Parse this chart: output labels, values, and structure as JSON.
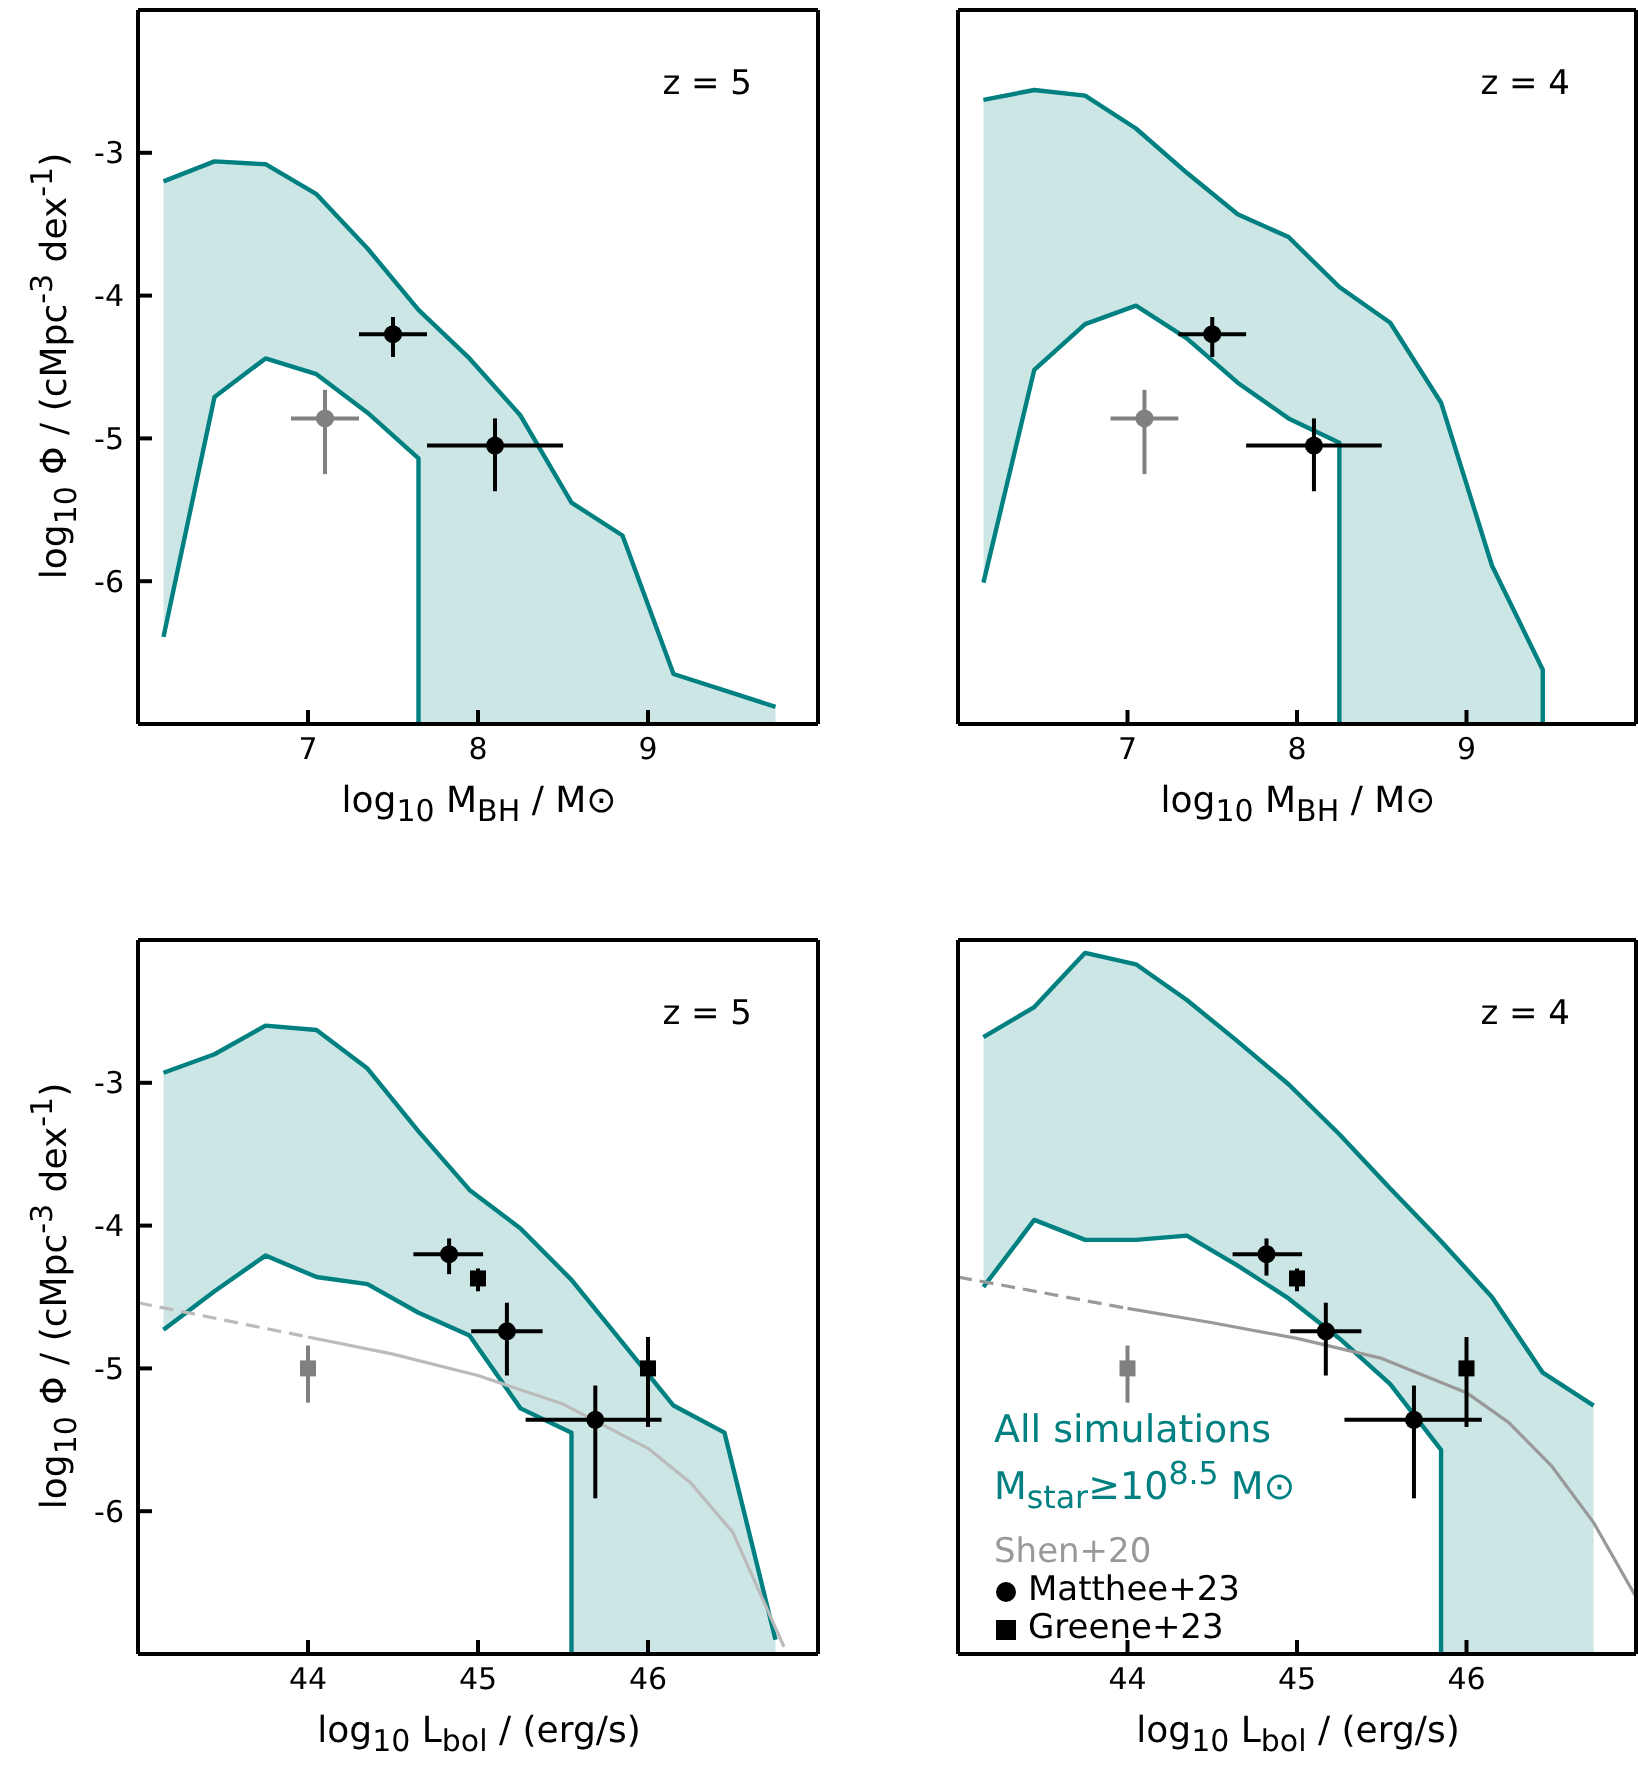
{
  "chart_data": [
    {
      "type": "line",
      "annotations": [
        "z = 5"
      ],
      "xlabel": "log$_{10}$ M$_{BH}$ / M⊙",
      "ylabel": "log$_{10}$ Φ / (cMpc$^{-3}$ dex$^{-1}$)",
      "xlim": [
        6,
        10
      ],
      "xticks": [
        7,
        8,
        9
      ],
      "ylim": [
        -7,
        -2
      ],
      "yticks": [
        -3,
        -4,
        -5,
        -6
      ],
      "series": [
        {
          "color": "#008080",
          "x": [
            6.15,
            6.45,
            6.75,
            7.05,
            7.35,
            7.65,
            7.65,
            7.95,
            8.25,
            8.55,
            8.85,
            9.15,
            9.75
          ],
          "values": [
            -3.2,
            -3.06,
            -3.08,
            -3.29,
            -3.67,
            -4.1,
            -4.1,
            -4.44,
            -4.84,
            -5.45,
            -5.68,
            -6.65,
            -6.88
          ],
          "upper": [
            -3.2,
            -3.06,
            -3.08,
            -3.29,
            -3.67,
            -4.1,
            -4.1,
            -4.44,
            -4.84,
            -5.45,
            -5.68,
            -6.65,
            -6.88
          ],
          "lower": [
            -6.39,
            -4.71,
            -4.44,
            -4.55,
            -4.82,
            -5.14,
            -7,
            -7,
            -7,
            -7,
            -7,
            -7,
            -7
          ]
        },
        {
          "color": "#008080",
          "x": [
            6.15,
            6.45,
            6.75,
            7.05,
            7.35,
            7.65,
            7.65
          ],
          "values": [
            -6.39,
            -4.71,
            -4.44,
            -4.55,
            -4.82,
            -5.14,
            -7
          ]
        },
        {
          "type": "scatter",
          "marker": "circle",
          "color": "#808080",
          "x": [
            7.1
          ],
          "values": [
            -4.86
          ],
          "errors": [
            [
              -5.25,
              -4.66
            ]
          ],
          "xerrors": [
            [
              6.9,
              7.3
            ]
          ]
        },
        {
          "type": "scatter",
          "marker": "circle",
          "color": "#000000",
          "x": [
            7.5,
            8.1
          ],
          "values": [
            -4.27,
            -5.05
          ],
          "errors": [
            [
              -4.43,
              -4.15
            ],
            [
              -5.37,
              -4.86
            ]
          ],
          "xerrors": [
            [
              7.3,
              7.7
            ],
            [
              7.7,
              8.5
            ]
          ]
        }
      ]
    },
    {
      "type": "line",
      "annotations": [
        "z = 4"
      ],
      "xlabel": "log$_{10}$ M$_{BH}$ / M⊙",
      "tick_labels": "x",
      "xlim": [
        6,
        10
      ],
      "xticks": [
        7,
        8,
        9
      ],
      "ylim": [
        -7,
        -2
      ],
      "yticks": [
        -3,
        -4,
        -5,
        -6
      ],
      "series": [
        {
          "color": "#008080",
          "x": [
            6.15,
            6.45,
            6.75,
            7.05,
            7.35,
            7.65,
            7.95,
            8.25,
            8.25,
            8.55,
            8.85,
            9.15,
            9.45,
            9.45
          ],
          "values": [
            -2.63,
            -2.56,
            -2.6,
            -2.83,
            -3.14,
            -3.43,
            -3.59,
            -3.94,
            -3.94,
            -4.19,
            -4.75,
            -5.89,
            -6.62,
            -7
          ],
          "upper": [
            -2.63,
            -2.56,
            -2.6,
            -2.83,
            -3.14,
            -3.43,
            -3.59,
            -3.94,
            -3.94,
            -4.19,
            -4.75,
            -5.89,
            -6.62,
            -7
          ],
          "lower": [
            -6.01,
            -4.52,
            -4.2,
            -4.07,
            -4.3,
            -4.61,
            -4.86,
            -5.03,
            -7,
            -7,
            -7,
            -7,
            -7,
            -7
          ]
        },
        {
          "color": "#008080",
          "x": [
            6.15,
            6.45,
            6.75,
            7.05,
            7.35,
            7.65,
            7.95,
            8.25,
            8.25
          ],
          "values": [
            -6.01,
            -4.52,
            -4.2,
            -4.07,
            -4.3,
            -4.61,
            -4.86,
            -5.03,
            -7
          ]
        },
        {
          "type": "scatter",
          "marker": "circle",
          "color": "#808080",
          "x": [
            7.1
          ],
          "values": [
            -4.86
          ],
          "errors": [
            [
              -5.25,
              -4.66
            ]
          ],
          "xerrors": [
            [
              6.9,
              7.3
            ]
          ]
        },
        {
          "type": "scatter",
          "marker": "circle",
          "color": "#000000",
          "x": [
            7.5,
            8.1
          ],
          "values": [
            -4.27,
            -5.05
          ],
          "errors": [
            [
              -4.43,
              -4.15
            ],
            [
              -5.37,
              -4.86
            ]
          ],
          "xerrors": [
            [
              7.3,
              7.7
            ],
            [
              7.7,
              8.5
            ]
          ]
        }
      ]
    },
    {
      "type": "line",
      "annotations": [
        "z = 5"
      ],
      "xlabel": "log$_{10}$ L$_{bol}$ / (erg/s)",
      "ylabel": "log$_{10}$ Φ / (cMpc$^{-3}$ dex$^{-1}$)",
      "xlim": [
        43,
        47
      ],
      "xticks": [
        44,
        45,
        46
      ],
      "ylim": [
        -7,
        -2
      ],
      "yticks": [
        -3,
        -4,
        -5,
        -6
      ],
      "series": [
        {
          "color": "#008080",
          "x": [
            43.15,
            43.45,
            43.75,
            44.05,
            44.35,
            44.65,
            44.95,
            45.25,
            45.55,
            45.55,
            45.85,
            46.15,
            46.45,
            46.75
          ],
          "values": [
            -2.93,
            -2.8,
            -2.6,
            -2.63,
            -2.9,
            -3.34,
            -3.75,
            -4.02,
            -4.38,
            -4.38,
            -4.82,
            -5.26,
            -5.45,
            -6.9
          ],
          "upper": [
            -2.93,
            -2.8,
            -2.6,
            -2.63,
            -2.9,
            -3.34,
            -3.75,
            -4.02,
            -4.38,
            -4.38,
            -4.82,
            -5.26,
            -5.45,
            -6.9
          ],
          "lower": [
            -4.73,
            -4.46,
            -4.21,
            -4.36,
            -4.41,
            -4.61,
            -4.77,
            -5.28,
            -5.45,
            -7,
            -7,
            -7,
            -7,
            -7
          ]
        },
        {
          "color": "#008080",
          "x": [
            43.15,
            43.45,
            43.75,
            44.05,
            44.35,
            44.65,
            44.95,
            45.25,
            45.55,
            45.55
          ],
          "values": [
            -4.73,
            -4.46,
            -4.21,
            -4.36,
            -4.41,
            -4.61,
            -4.77,
            -5.28,
            -5.45,
            -7
          ]
        },
        {
          "line_style": "dashed",
          "color": "#bbbbbb",
          "x": [
            43,
            43.5,
            44
          ],
          "values": [
            -4.54,
            -4.66,
            -4.78
          ]
        },
        {
          "line_style": "solid",
          "color": "#bbbbbb",
          "x": [
            44,
            44.5,
            45,
            45.5,
            46,
            46.25,
            46.5,
            46.8
          ],
          "values": [
            -4.78,
            -4.9,
            -5.05,
            -5.25,
            -5.56,
            -5.8,
            -6.15,
            -6.95
          ]
        },
        {
          "type": "scatter",
          "marker": "square",
          "color": "#808080",
          "x": [
            44
          ],
          "values": [
            -5.0
          ],
          "errors": [
            [
              -5.24,
              -4.84
            ]
          ]
        },
        {
          "type": "scatter",
          "marker": "circle",
          "color": "#000000",
          "x": [
            44.83,
            45.17,
            45.69
          ],
          "values": [
            -4.2,
            -4.74,
            -5.36
          ],
          "errors": [
            [
              -4.34,
              -4.09
            ],
            [
              -5.05,
              -4.54
            ],
            [
              -5.91,
              -5.12
            ]
          ],
          "xerrors": [
            [
              44.62,
              45.03
            ],
            [
              44.96,
              45.38
            ],
            [
              45.28,
              46.08
            ]
          ]
        },
        {
          "type": "scatter",
          "marker": "square",
          "color": "#000000",
          "x": [
            45.0,
            46.0
          ],
          "values": [
            -4.37,
            -5.0
          ],
          "errors": [
            [
              -4.46,
              -4.3
            ],
            [
              -5.41,
              -4.78
            ]
          ]
        }
      ]
    },
    {
      "type": "line",
      "annotations": [
        "z = 4"
      ],
      "xlabel": "log$_{10}$ L$_{bol}$ / (erg/s)",
      "tick_labels": "x",
      "legend": "bottom left",
      "xlim": [
        43,
        47
      ],
      "xticks": [
        44,
        45,
        46
      ],
      "ylim": [
        -7,
        -2
      ],
      "yticks": [
        -3,
        -4,
        -5,
        -6
      ],
      "series": [
        {
          "name": "All simulations M$_{star}$≥10$^{8.5}$ M⊙",
          "color": "#008080",
          "x": [
            43.15,
            43.45,
            43.75,
            44.05,
            44.35,
            44.65,
            44.95,
            45.25,
            45.55,
            45.85,
            45.85,
            46.15,
            46.45,
            46.75
          ],
          "values": [
            -2.68,
            -2.47,
            -2.09,
            -2.17,
            -2.42,
            -2.71,
            -3.01,
            -3.36,
            -3.74,
            -4.11,
            -4.11,
            -4.5,
            -5.03,
            -5.26
          ],
          "upper": [
            -2.68,
            -2.47,
            -2.09,
            -2.17,
            -2.42,
            -2.71,
            -3.01,
            -3.36,
            -3.74,
            -4.11,
            -4.11,
            -4.5,
            -5.03,
            -5.26
          ],
          "lower": [
            -4.43,
            -3.96,
            -4.1,
            -4.1,
            -4.07,
            -4.28,
            -4.51,
            -4.79,
            -5.11,
            -5.57,
            -7,
            -7,
            -7,
            -7
          ]
        },
        {
          "color": "#008080",
          "x": [
            43.15,
            43.45,
            43.75,
            44.05,
            44.35,
            44.65,
            44.95,
            45.25,
            45.55,
            45.85,
            45.85
          ],
          "values": [
            -4.43,
            -3.96,
            -4.1,
            -4.1,
            -4.07,
            -4.28,
            -4.51,
            -4.79,
            -5.11,
            -5.57,
            -7
          ]
        },
        {
          "line_style": "dashed",
          "color": "#999999",
          "x": [
            43,
            43.5,
            44
          ],
          "values": [
            -4.36,
            -4.47,
            -4.58
          ]
        },
        {
          "line_style": "solid",
          "name": "Shen+20",
          "color": "#999999",
          "x": [
            44,
            44.5,
            45,
            45.5,
            46,
            46.25,
            46.5,
            46.75,
            47
          ],
          "values": [
            -4.58,
            -4.68,
            -4.79,
            -4.93,
            -5.17,
            -5.38,
            -5.68,
            -6.08,
            -6.6
          ]
        },
        {
          "type": "scatter",
          "marker": "square",
          "color": "#808080",
          "x": [
            44
          ],
          "values": [
            -5.0
          ],
          "errors": [
            [
              -5.24,
              -4.84
            ]
          ]
        },
        {
          "type": "scatter",
          "marker": "circle",
          "name": "Matthee+23",
          "color": "#000000",
          "x": [
            44.82,
            45.17,
            45.69
          ],
          "values": [
            -4.2,
            -4.74,
            -5.36
          ],
          "errors": [
            [
              -4.35,
              -4.09
            ],
            [
              -5.05,
              -4.54
            ],
            [
              -5.91,
              -5.12
            ]
          ],
          "xerrors": [
            [
              44.62,
              45.03
            ],
            [
              44.96,
              45.38
            ],
            [
              45.28,
              46.09
            ]
          ]
        },
        {
          "type": "scatter",
          "marker": "square",
          "name": "Greene+23",
          "color": "#000000",
          "x": [
            45.0,
            46.0
          ],
          "values": [
            -4.37,
            -5.0
          ],
          "errors": [
            [
              -4.46,
              -4.3
            ],
            [
              -5.41,
              -4.78
            ]
          ]
        }
      ]
    }
  ]
}
